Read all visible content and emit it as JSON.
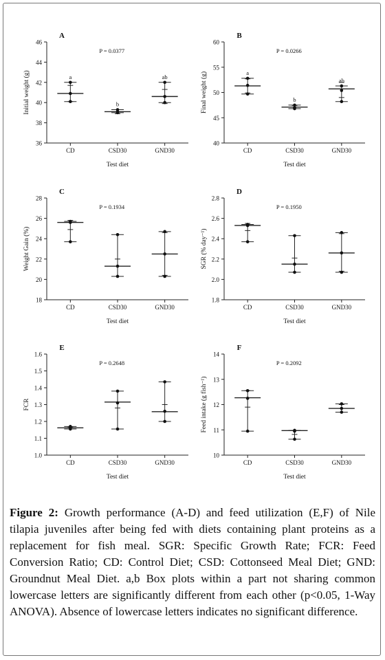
{
  "chart_data": [
    {
      "type": "scatter",
      "panel": "A",
      "ylabel": "Initial weight (g)",
      "xlabel": "Test diet",
      "categories": [
        "CD",
        "CSD30",
        "GND30"
      ],
      "ylim": [
        36,
        46
      ],
      "yticks": [
        36,
        38,
        40,
        42,
        44,
        46
      ],
      "pvalue": "P = 0.0377",
      "letters": [
        "a",
        "b",
        "ab"
      ],
      "points": [
        [
          40.1,
          40.9,
          42.0
        ],
        [
          39.0,
          39.1,
          39.3
        ],
        [
          40.0,
          40.6,
          42.0
        ]
      ],
      "mean": [
        40.9,
        39.1,
        40.6
      ],
      "whisker": [
        [
          40.1,
          42.0
        ],
        [
          39.0,
          39.3
        ],
        [
          40.0,
          42.0
        ]
      ],
      "sd": [
        [
          40.1,
          41.7
        ],
        [
          38.9,
          39.3
        ],
        [
          39.9,
          41.3
        ]
      ]
    },
    {
      "type": "scatter",
      "panel": "B",
      "ylabel": "Final weight (g)",
      "xlabel": "Test diet",
      "categories": [
        "CD",
        "CSD30",
        "GND30"
      ],
      "ylim": [
        40,
        60
      ],
      "yticks": [
        40,
        45,
        50,
        55,
        60
      ],
      "pvalue": "P = 0.0266",
      "letters": [
        "a",
        "b",
        "ab"
      ],
      "points": [
        [
          49.7,
          51.4,
          52.8
        ],
        [
          46.8,
          47.0,
          47.5
        ],
        [
          48.2,
          50.4,
          51.3
        ]
      ],
      "mean": [
        51.3,
        47.1,
        50.7
      ],
      "whisker": [
        [
          49.7,
          52.8
        ],
        [
          46.8,
          47.5
        ],
        [
          48.2,
          51.3
        ]
      ],
      "sd": [
        [
          49.9,
          52.7
        ],
        [
          46.8,
          47.4
        ],
        [
          49.0,
          52.0
        ]
      ]
    },
    {
      "type": "scatter",
      "panel": "C",
      "ylabel": "Weight Gain (%)",
      "xlabel": "Test diet",
      "categories": [
        "CD",
        "CSD30",
        "GND30"
      ],
      "ylim": [
        18,
        28
      ],
      "yticks": [
        18,
        20,
        22,
        24,
        26,
        28
      ],
      "pvalue": "P = 0.1934",
      "letters": [],
      "points": [
        [
          23.7,
          25.6,
          25.7
        ],
        [
          20.3,
          21.3,
          24.4
        ],
        [
          20.3,
          22.5,
          24.7
        ]
      ],
      "mean": [
        25.6,
        21.3,
        22.5
      ],
      "whisker": [
        [
          23.7,
          25.7
        ],
        [
          20.3,
          24.4
        ],
        [
          20.3,
          24.7
        ]
      ],
      "sd": [
        [
          24.9,
          25.8
        ],
        [
          20.3,
          22.0
        ],
        [
          20.4,
          24.6
        ]
      ]
    },
    {
      "type": "scatter",
      "panel": "D",
      "ylabel": "SGR (% day⁻¹)",
      "xlabel": "Test diet",
      "categories": [
        "CD",
        "CSD30",
        "GND30"
      ],
      "ylim": [
        1.8,
        2.8
      ],
      "yticks": [
        "1.8",
        "2.0",
        "2.2",
        "2.4",
        "2.6",
        "2.8"
      ],
      "pvalue": "P = 0.1950",
      "letters": [],
      "points": [
        [
          2.37,
          2.53,
          2.54
        ],
        [
          2.07,
          2.15,
          2.43
        ],
        [
          2.07,
          2.26,
          2.46
        ]
      ],
      "mean": [
        2.53,
        2.15,
        2.26
      ],
      "whisker": [
        [
          2.37,
          2.54
        ],
        [
          2.07,
          2.43
        ],
        [
          2.07,
          2.46
        ]
      ],
      "sd": [
        [
          2.48,
          2.55
        ],
        [
          2.07,
          2.21
        ],
        [
          2.08,
          2.45
        ]
      ]
    },
    {
      "type": "scatter",
      "panel": "E",
      "ylabel": "FCR",
      "xlabel": "Test diet",
      "categories": [
        "CD",
        "CSD30",
        "GND30"
      ],
      "ylim": [
        1.0,
        1.6
      ],
      "yticks": [
        "1.0",
        "1.1",
        "1.2",
        "1.3",
        "1.4",
        "1.5",
        "1.6"
      ],
      "pvalue": "P = 0.2648",
      "letters": [],
      "points": [
        [
          1.155,
          1.162,
          1.17
        ],
        [
          1.155,
          1.31,
          1.38
        ],
        [
          1.2,
          1.26,
          1.435
        ]
      ],
      "mean": [
        1.162,
        1.315,
        1.258
      ],
      "whisker": [
        [
          1.155,
          1.17
        ],
        [
          1.155,
          1.38
        ],
        [
          1.2,
          1.435
        ]
      ],
      "sd": [
        [
          1.155,
          1.168
        ],
        [
          1.155,
          1.28
        ],
        [
          1.2,
          1.3
        ]
      ]
    },
    {
      "type": "scatter",
      "panel": "F",
      "ylabel": "Feed intake (g fish⁻¹)",
      "xlabel": "Test diet",
      "categories": [
        "CD",
        "CSD30",
        "GND30"
      ],
      "ylim": [
        10,
        14
      ],
      "yticks": [
        10,
        11,
        12,
        13,
        14
      ],
      "pvalue": "P = 0.2092",
      "letters": [],
      "points": [
        [
          10.95,
          12.25,
          12.55
        ],
        [
          10.63,
          10.95,
          10.98
        ],
        [
          11.7,
          11.85,
          12.03
        ]
      ],
      "mean": [
        12.27,
        10.97,
        11.85
      ],
      "whisker": [
        [
          10.95,
          12.55
        ],
        [
          10.63,
          10.98
        ],
        [
          11.7,
          12.03
        ]
      ],
      "sd": [
        [
          11.9,
          12.55
        ],
        [
          10.82,
          10.98
        ],
        [
          11.7,
          12.0
        ]
      ]
    }
  ],
  "caption": {
    "label": "Figure 2:",
    "text": "Growth performance (A-D) and feed utilization (E,F) of Nile tilapia juveniles after being fed with diets containing plant proteins as a replacement for fish meal. SGR: Specific Growth Rate; FCR: Feed Conversion Ratio; CD: Control Diet; CSD: Cottonseed Meal Diet; GND: Groundnut Meal Diet. a,b Box plots within a part not sharing common lowercase letters are significantly different from each other (p<0.05, 1-Way ANOVA). Absence of lowercase letters indicates no significant difference."
  }
}
